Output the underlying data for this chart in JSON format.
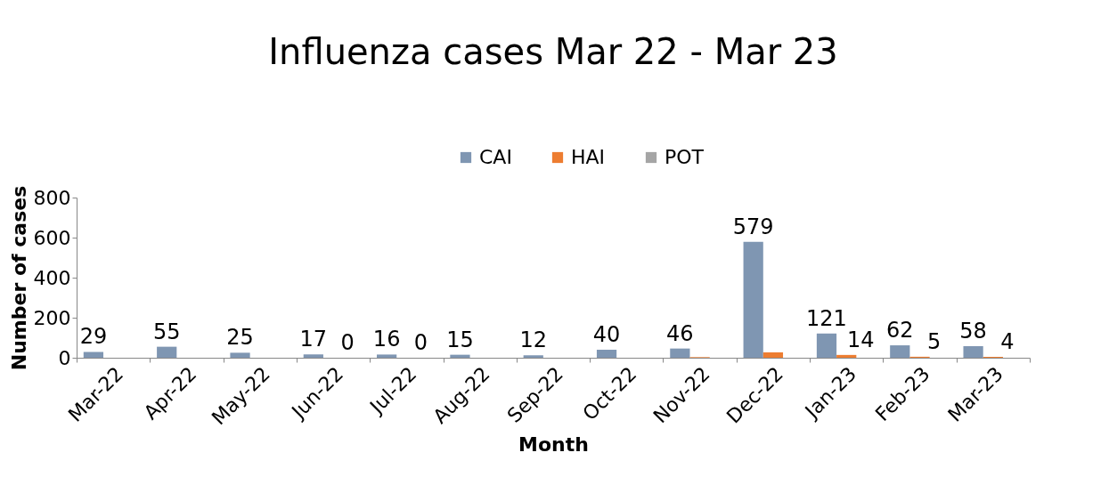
{
  "chart_data": {
    "type": "bar",
    "title": "Influenza cases Mar 22 - Mar 23",
    "xlabel": "Month",
    "ylabel": "Number of cases",
    "categories": [
      "Mar-22",
      "Apr-22",
      "May-22",
      "Jun-22",
      "Jul-22",
      "Aug-22",
      "Sep-22",
      "Oct-22",
      "Nov-22",
      "Dec-22",
      "Jan-23",
      "Feb-23",
      "Mar-23"
    ],
    "series": [
      {
        "name": "CAI",
        "color": "#7f96b2",
        "values": [
          29,
          55,
          25,
          17,
          16,
          15,
          12,
          40,
          46,
          579,
          121,
          62,
          58
        ],
        "value_labels": [
          "29",
          "55",
          "25",
          "17",
          "16",
          "15",
          "12",
          "40",
          "46",
          "579",
          "121",
          "62",
          "58"
        ]
      },
      {
        "name": "HAI",
        "color": "#ed7d31",
        "values": [
          null,
          null,
          null,
          0,
          0,
          null,
          null,
          null,
          3,
          27,
          14,
          5,
          4
        ],
        "value_labels": [
          null,
          null,
          null,
          "0",
          "0",
          null,
          null,
          null,
          null,
          null,
          "14",
          "5",
          "4"
        ]
      },
      {
        "name": "POT",
        "color": "#a5a5a5",
        "values": [
          null,
          null,
          null,
          null,
          null,
          null,
          null,
          null,
          null,
          null,
          null,
          null,
          null
        ]
      }
    ],
    "ylim": [
      0,
      800
    ],
    "yticks": [
      0,
      200,
      400,
      600,
      800
    ],
    "grid": false,
    "legend": "top"
  }
}
